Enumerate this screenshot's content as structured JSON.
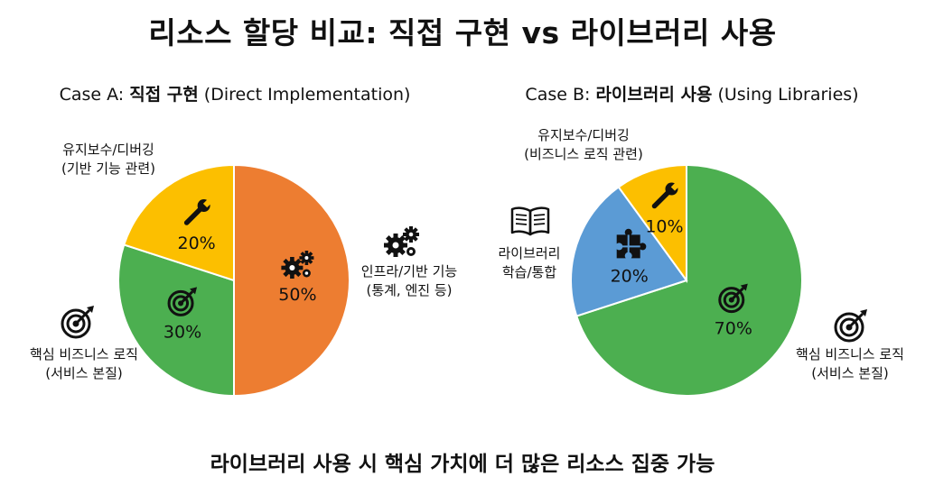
{
  "title": "리소스 할당 비교: 직접 구현 vs 라이브러리 사용",
  "footer": "라이브러리 사용 시 핵심 가치에 더 많은 리소스 집중 가능",
  "colors": {
    "orange": "#ed7d31",
    "green": "#4caf50",
    "yellow": "#fcbf00",
    "blue": "#5b9bd5"
  },
  "chart_data": [
    {
      "type": "pie",
      "title_prefix": "Case A: ",
      "title_bold": "직접 구현",
      "title_suffix": " (Direct Implementation)",
      "slices": [
        {
          "id": "a-infra",
          "value": 50,
          "label_line1": "인프라/기반 기능",
          "label_line2": "(통계, 엔진 등)",
          "color": "#ed7d31",
          "icon": "gears-icon",
          "pct_text": "50%"
        },
        {
          "id": "a-core",
          "value": 30,
          "label_line1": "핵심 비즈니스 로직",
          "label_line2": "(서비스 본질)",
          "color": "#4caf50",
          "icon": "target-icon",
          "pct_text": "30%"
        },
        {
          "id": "a-maint",
          "value": 20,
          "label_line1": "유지보수/디버깅",
          "label_line2": "(기반 기능 관련)",
          "color": "#fcbf00",
          "icon": "wrench-icon",
          "pct_text": "20%"
        }
      ]
    },
    {
      "type": "pie",
      "title_prefix": "Case B: ",
      "title_bold": "라이브러리 사용",
      "title_suffix": " (Using Libraries)",
      "slices": [
        {
          "id": "b-core",
          "value": 70,
          "label_line1": "핵심 비즈니스 로직",
          "label_line2": "(서비스 본질)",
          "color": "#4caf50",
          "icon": "target-icon",
          "pct_text": "70%"
        },
        {
          "id": "b-learn",
          "value": 20,
          "label_line1": "라이브러리",
          "label_line2": "학습/통합",
          "color": "#5b9bd5",
          "icon": "puzzle-icon",
          "pct_text": "20%"
        },
        {
          "id": "b-maint",
          "value": 10,
          "label_line1": "유지보수/디버깅",
          "label_line2": "(비즈니스 로직 관련)",
          "color": "#fcbf00",
          "icon": "wrench-icon",
          "pct_text": "10%"
        }
      ]
    }
  ]
}
